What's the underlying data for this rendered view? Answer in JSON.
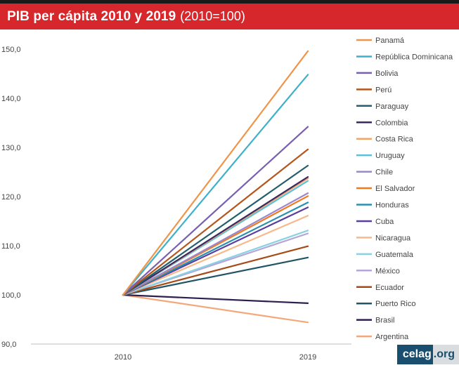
{
  "header": {
    "title_bold": "PIB per cápita 2010 y 2019",
    "title_light": "(2010=100)"
  },
  "brand": {
    "part1": "celag",
    "part2": ".org"
  },
  "chart_data": {
    "type": "line",
    "title": "PIB per cápita 2010 y 2019",
    "subtitle": "(2010=100)",
    "categories": [
      "2010",
      "2019"
    ],
    "ylim": [
      90,
      150
    ],
    "yticks": [
      "90,0",
      "100,0",
      "110,0",
      "120,0",
      "130,0",
      "140,0",
      "150,0"
    ],
    "ytick_values": [
      90,
      100,
      110,
      120,
      130,
      140,
      150
    ],
    "grid": false,
    "legend_position": "right",
    "series": [
      {
        "name": "Panamá",
        "values": [
          100,
          149.6
        ],
        "color": "#f0944a"
      },
      {
        "name": "República Dominicana",
        "values": [
          100,
          144.8
        ],
        "color": "#3fb0c9"
      },
      {
        "name": "Bolivia",
        "values": [
          100,
          134.2
        ],
        "color": "#7860b0"
      },
      {
        "name": "Perú",
        "values": [
          100,
          129.6
        ],
        "color": "#b5561c"
      },
      {
        "name": "Paraguay",
        "values": [
          100,
          126.3
        ],
        "color": "#245f6e"
      },
      {
        "name": "Colombia",
        "values": [
          100,
          124.0
        ],
        "color": "#3a2a62"
      },
      {
        "name": "Costa Rica",
        "values": [
          100,
          123.7
        ],
        "color": "#f5a468"
      },
      {
        "name": "Uruguay",
        "values": [
          100,
          123.2
        ],
        "color": "#5cc0d8"
      },
      {
        "name": "Chile",
        "values": [
          100,
          120.7
        ],
        "color": "#9b88cc"
      },
      {
        "name": "El Salvador",
        "values": [
          100,
          120.1
        ],
        "color": "#f07a22"
      },
      {
        "name": "Honduras",
        "values": [
          100,
          118.8
        ],
        "color": "#2a8fae"
      },
      {
        "name": "Cuba",
        "values": [
          100,
          117.8
        ],
        "color": "#5a3ea0"
      },
      {
        "name": "Nicaragua",
        "values": [
          100,
          116.1
        ],
        "color": "#f7b98a"
      },
      {
        "name": "Guatemala",
        "values": [
          100,
          113.1
        ],
        "color": "#8ad2e2"
      },
      {
        "name": "México",
        "values": [
          100,
          112.5
        ],
        "color": "#b3a6d8"
      },
      {
        "name": "Ecuador",
        "values": [
          100,
          109.9
        ],
        "color": "#a64b18"
      },
      {
        "name": "Puerto Rico",
        "values": [
          100,
          107.6
        ],
        "color": "#1f5566"
      },
      {
        "name": "Brasil",
        "values": [
          100,
          98.3
        ],
        "color": "#2d2050"
      },
      {
        "name": "Argentina",
        "values": [
          100,
          94.4
        ],
        "color": "#f4a87a"
      }
    ]
  }
}
